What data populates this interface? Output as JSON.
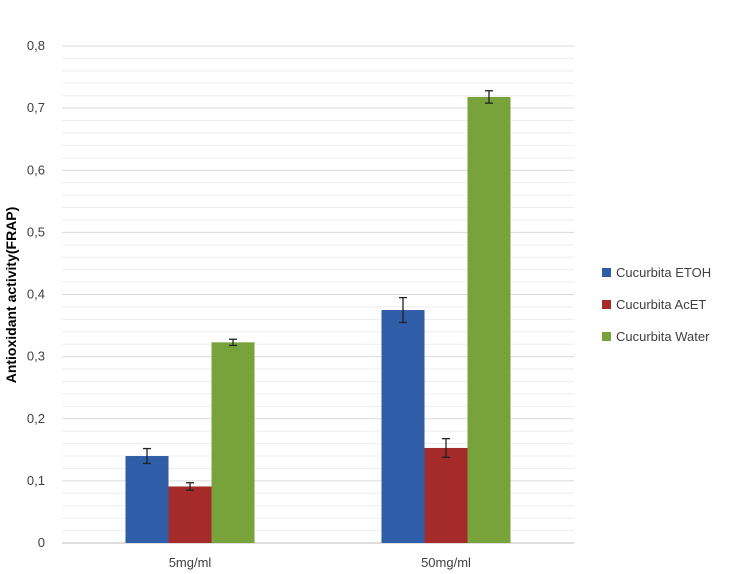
{
  "chart_data": {
    "type": "bar",
    "title": "",
    "xlabel": "",
    "ylabel": "Antioxidant activity(FRAP)",
    "categories": [
      "5mg/ml",
      "50mg/ml"
    ],
    "series": [
      {
        "name": "Cucurbita ETOH",
        "values": [
          0.14,
          0.375
        ],
        "errors": [
          0.012,
          0.02
        ],
        "color": "#2F5DA8"
      },
      {
        "name": "Cucurbita AcET",
        "values": [
          0.091,
          0.153
        ],
        "errors": [
          0.006,
          0.015
        ],
        "color": "#A52A2A"
      },
      {
        "name": "Cucurbita Water",
        "values": [
          0.323,
          0.718
        ],
        "errors": [
          0.005,
          0.01
        ],
        "color": "#77A33A"
      }
    ],
    "ylim": [
      0,
      0.8
    ],
    "yticks": [
      0,
      0.1,
      0.2,
      0.3,
      0.4,
      0.5,
      0.6,
      0.7,
      0.8
    ],
    "ytick_labels": [
      "0",
      "0,1",
      "0,2",
      "0,3",
      "0,4",
      "0,5",
      "0,6",
      "0,7",
      "0,8"
    ],
    "grid": true,
    "legend_position": "right"
  }
}
